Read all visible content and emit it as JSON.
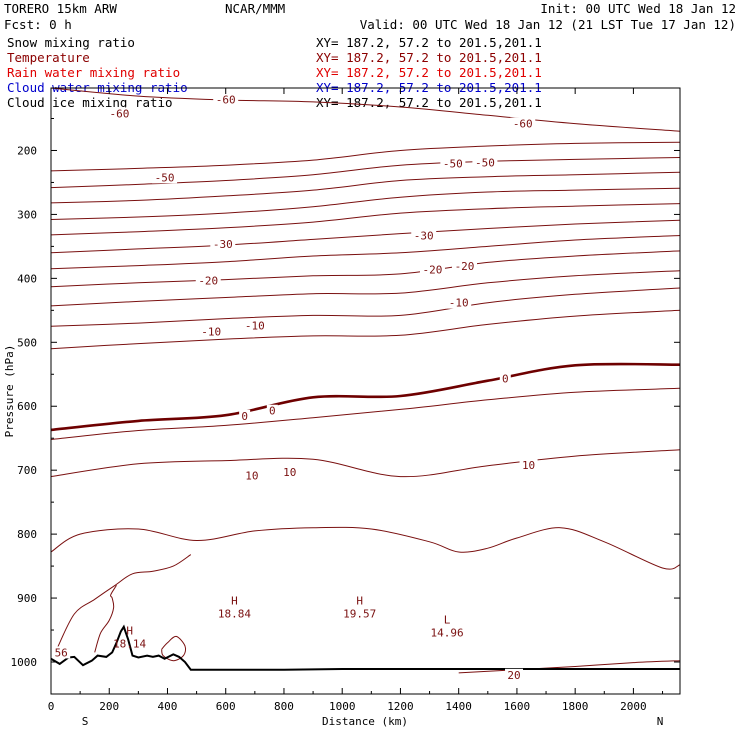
{
  "header": {
    "model": "TORERO  15km ARW",
    "center": "NCAR/MMM",
    "init": "Init: 00 UTC Wed 18 Jan 12",
    "fcst": "Fcst:    0 h",
    "valid": "Valid: 00 UTC Wed 18 Jan 12 (21 LST Tue 17 Jan 12)"
  },
  "fields": [
    {
      "name": "Snow mixing ratio",
      "xy": "XY= 187.2, 57.2 to 201.5,201.1",
      "color": "#000000"
    },
    {
      "name": "Temperature",
      "xy": "XY= 187.2, 57.2 to 201.5,201.1",
      "color": "#8b0000"
    },
    {
      "name": "Rain water mixing ratio",
      "xy": "XY= 187.2, 57.2 to 201.5,201.1",
      "color": "#e00000"
    },
    {
      "name": "Cloud water mixing ratio",
      "xy": "XY= 187.2, 57.2 to 201.5,201.1",
      "color": "#0000cc"
    },
    {
      "name": "Cloud ice mixing ratio",
      "xy": "XY= 187.2, 57.2 to 201.5,201.1",
      "color": "#000000"
    }
  ],
  "chart_data": {
    "type": "line",
    "xlabel": "Distance (km)",
    "ylabel": "Pressure (hPa)",
    "xlim": [
      0,
      2160
    ],
    "ylim": [
      1050,
      100
    ],
    "xticks": [
      0,
      200,
      400,
      600,
      800,
      1000,
      1200,
      1400,
      1600,
      1800,
      2000
    ],
    "yticks": [
      200,
      300,
      400,
      500,
      600,
      700,
      800,
      900,
      1000
    ],
    "endpoints": {
      "left": "S",
      "right": "N"
    },
    "temperature_color": "#7a1010",
    "zero_color": "#6e0000",
    "terrain_color": "#000000",
    "temperature_contours": [
      {
        "level": -60,
        "x": [
          0,
          300,
          600,
          900,
          1200,
          1500,
          1800,
          2160
        ],
        "p": [
          100,
          115,
          121,
          124,
          132,
          145,
          158,
          170
        ]
      },
      {
        "level": -55,
        "x": [
          0,
          300,
          600,
          900,
          1200,
          1500,
          1800,
          2160
        ],
        "p": [
          232,
          228,
          223,
          215,
          200,
          193,
          189,
          187
        ]
      },
      {
        "level": -50,
        "x": [
          0,
          300,
          600,
          900,
          1200,
          1500,
          1800,
          2160
        ],
        "p": [
          258,
          253,
          247,
          238,
          223,
          217,
          214,
          211
        ]
      },
      {
        "level": -45,
        "x": [
          0,
          300,
          600,
          900,
          1200,
          1500,
          1800,
          2160
        ],
        "p": [
          282,
          278,
          271,
          262,
          247,
          241,
          238,
          234
        ]
      },
      {
        "level": -40,
        "x": [
          0,
          300,
          600,
          900,
          1200,
          1500,
          1800,
          2160
        ],
        "p": [
          308,
          304,
          298,
          288,
          273,
          265,
          262,
          259
        ]
      },
      {
        "level": -35,
        "x": [
          0,
          300,
          600,
          900,
          1200,
          1500,
          1800,
          2160
        ],
        "p": [
          332,
          327,
          321,
          312,
          298,
          291,
          287,
          283
        ]
      },
      {
        "level": -30,
        "x": [
          0,
          300,
          600,
          900,
          1200,
          1500,
          1800,
          2160
        ],
        "p": [
          360,
          354,
          348,
          339,
          330,
          322,
          315,
          309
        ]
      },
      {
        "level": -25,
        "x": [
          0,
          300,
          600,
          900,
          1200,
          1500,
          1800,
          2160
        ],
        "p": [
          385,
          380,
          374,
          365,
          360,
          350,
          340,
          333
        ]
      },
      {
        "level": -20,
        "x": [
          0,
          300,
          600,
          900,
          1200,
          1500,
          1800,
          2160
        ],
        "p": [
          413,
          407,
          402,
          396,
          393,
          375,
          365,
          357
        ]
      },
      {
        "level": -15,
        "x": [
          0,
          300,
          600,
          900,
          1200,
          1500,
          1800,
          2160
        ],
        "p": [
          443,
          436,
          430,
          424,
          423,
          407,
          396,
          388
        ]
      },
      {
        "level": -10,
        "x": [
          0,
          300,
          600,
          900,
          1200,
          1500,
          1800,
          2160
        ],
        "p": [
          475,
          470,
          463,
          458,
          458,
          438,
          425,
          415
        ]
      },
      {
        "level": -5,
        "x": [
          0,
          300,
          600,
          900,
          1200,
          1500,
          1800,
          2160
        ],
        "p": [
          510,
          502,
          495,
          490,
          489,
          472,
          459,
          450
        ]
      },
      {
        "level": 0,
        "x": [
          0,
          300,
          600,
          900,
          1200,
          1500,
          1800,
          2160
        ],
        "p": [
          637,
          623,
          614,
          586,
          584,
          560,
          536,
          535
        ]
      },
      {
        "level": 5,
        "x": [
          0,
          300,
          600,
          900,
          1200,
          1500,
          1800,
          2160
        ],
        "p": [
          652,
          638,
          630,
          618,
          605,
          590,
          578,
          572
        ]
      },
      {
        "level": 10,
        "x": [
          0,
          300,
          600,
          900,
          1200,
          1500,
          1800,
          2160
        ],
        "p": [
          710,
          690,
          685,
          683,
          710,
          693,
          678,
          668
        ]
      },
      {
        "level": 15,
        "x": [
          0,
          100,
          300,
          500,
          700,
          900,
          1100,
          1300,
          1400,
          1500,
          1600,
          1750,
          1900,
          2100,
          2160
        ],
        "p": [
          828,
          800,
          792,
          810,
          795,
          790,
          792,
          812,
          828,
          822,
          806,
          790,
          812,
          853,
          848
        ]
      },
      {
        "level": 20,
        "x": [
          1400,
          1600,
          1800,
          2000,
          2160
        ],
        "p": [
          1017,
          1012,
          1007,
          1001,
          998
        ]
      }
    ],
    "warm_loops": [
      {
        "level": 15,
        "x": [
          20,
          80,
          150,
          220,
          280,
          350,
          420,
          480
        ],
        "p": [
          980,
          925,
          902,
          880,
          862,
          858,
          850,
          832
        ]
      },
      {
        "level": 15,
        "x": [
          380,
          400,
          430,
          460,
          455,
          420,
          385,
          380
        ],
        "p": [
          980,
          970,
          960,
          975,
          990,
          998,
          990,
          980
        ]
      },
      {
        "level": 15,
        "x": [
          150,
          170,
          200,
          215,
          210,
          205,
          225
        ],
        "p": [
          985,
          955,
          935,
          915,
          900,
          895,
          880
        ]
      }
    ],
    "contour_labels": [
      {
        "text": "-60",
        "x": 235,
        "p": 142,
        "dx": 0
      },
      {
        "text": "-60",
        "x": 600,
        "p": 120,
        "dx": 0
      },
      {
        "text": "-60",
        "x": 1620,
        "p": 158,
        "dx": 0
      },
      {
        "text": "-50",
        "x": 390,
        "p": 242,
        "dx": 0
      },
      {
        "text": "-50",
        "x": 1380,
        "p": 220,
        "dx": 0
      },
      {
        "text": "-50",
        "x": 1490,
        "p": 219,
        "dx": 0
      },
      {
        "text": "-30",
        "x": 590,
        "p": 346,
        "dx": 0
      },
      {
        "text": "-30",
        "x": 1280,
        "p": 333,
        "dx": 0
      },
      {
        "text": "-20",
        "x": 540,
        "p": 403,
        "dx": 0
      },
      {
        "text": "-20",
        "x": 1310,
        "p": 386,
        "dx": 0
      },
      {
        "text": "-20",
        "x": 1420,
        "p": 381,
        "dx": 0
      },
      {
        "text": "-10",
        "x": 550,
        "p": 483,
        "dx": 0
      },
      {
        "text": "-10",
        "x": 700,
        "p": 474,
        "dx": 0
      },
      {
        "text": "-10",
        "x": 1400,
        "p": 438,
        "dx": 0
      },
      {
        "text": "0",
        "x": 665,
        "p": 615,
        "dx": 0
      },
      {
        "text": "0",
        "x": 760,
        "p": 607,
        "dx": 0
      },
      {
        "text": "0",
        "x": 1560,
        "p": 557,
        "dx": 0
      },
      {
        "text": "10",
        "x": 690,
        "p": 708,
        "dx": 0
      },
      {
        "text": "10",
        "x": 820,
        "p": 703,
        "dx": 0
      },
      {
        "text": "10",
        "x": 1640,
        "p": 692,
        "dx": 0
      },
      {
        "text": "20",
        "x": 1590,
        "p": 1020,
        "dx": 0
      },
      {
        "text": "56",
        "x": 35,
        "p": 985,
        "dx": 0
      }
    ],
    "extrema": [
      {
        "kind": "H",
        "value": "18.84",
        "x": 630,
        "p": 910
      },
      {
        "kind": "H",
        "value": "19.57",
        "x": 1060,
        "p": 910
      },
      {
        "kind": "L",
        "value": "14.96",
        "x": 1360,
        "p": 940
      },
      {
        "kind": "H",
        "value": "18.14",
        "x": 270,
        "p": 957
      }
    ],
    "terrain": {
      "x": [
        0,
        30,
        60,
        80,
        110,
        140,
        160,
        190,
        210,
        225,
        240,
        250,
        265,
        280,
        300,
        330,
        350,
        370,
        390,
        420,
        440,
        460,
        480,
        600,
        800,
        1000,
        1200,
        1400,
        1600,
        1800,
        2000,
        2160
      ],
      "p": [
        995,
        1003,
        993,
        992,
        1005,
        998,
        990,
        992,
        985,
        970,
        952,
        945,
        965,
        990,
        993,
        990,
        992,
        990,
        995,
        988,
        992,
        1000,
        1012,
        1012,
        1012,
        1011,
        1011,
        1011,
        1011,
        1011,
        1011,
        1011
      ]
    }
  }
}
